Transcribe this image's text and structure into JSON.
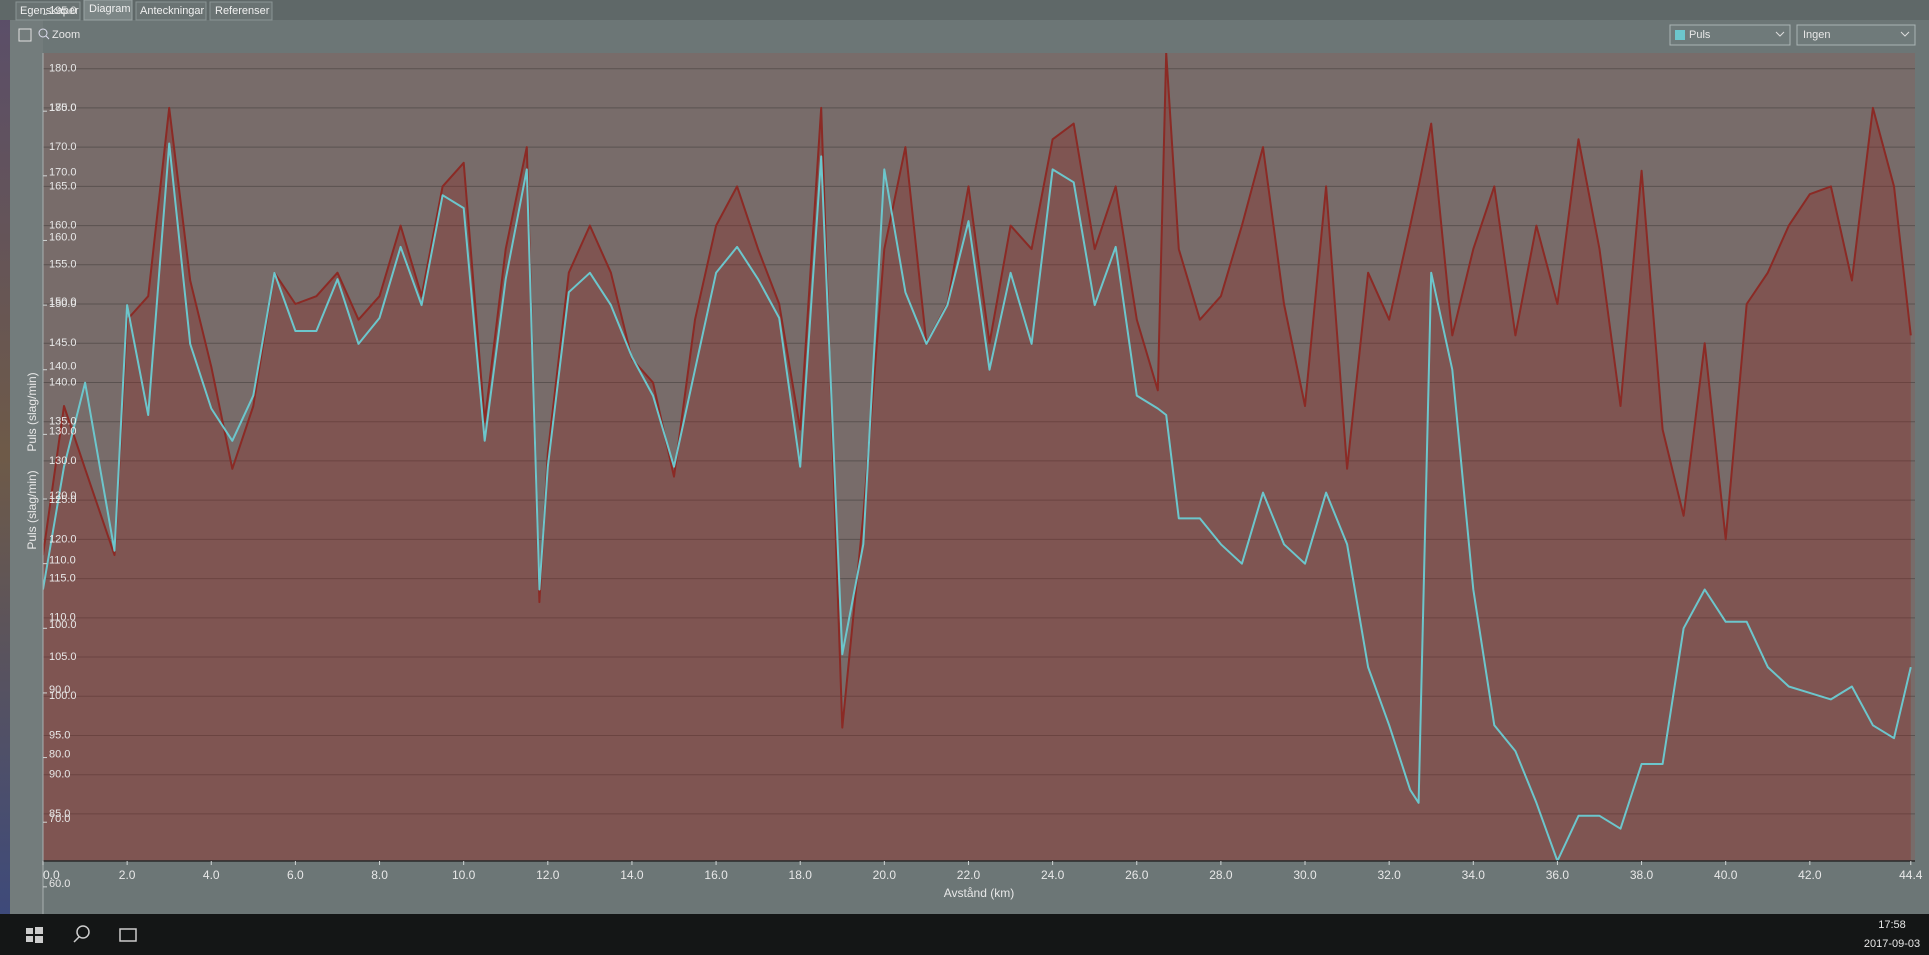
{
  "tabs": [
    "Egenskaper",
    "Diagram",
    "Anteckningar",
    "Referenser"
  ],
  "zoom_label": "Zoom",
  "dropdowns": [
    "Puls",
    "Ingen"
  ],
  "taskbar": {
    "time": "17:58",
    "date": "2017-09-03"
  },
  "chart_data": {
    "type": "line",
    "x_label": "Avstånd  (km)",
    "y_label": "Puls (slag/min)",
    "y2_label": "Puls (slag/min)",
    "x": [
      0,
      0.5,
      1,
      1.7,
      2,
      2.5,
      3,
      3.5,
      4,
      4.5,
      5,
      5.5,
      6,
      6.5,
      7,
      7.5,
      8,
      8.5,
      9,
      9.5,
      10,
      10.5,
      11,
      11.5,
      11.8,
      12,
      12.5,
      13,
      13.5,
      14,
      14.5,
      15,
      15.5,
      16,
      16.5,
      17,
      17.5,
      18,
      18.5,
      19,
      19.5,
      20,
      20.5,
      21,
      21.5,
      22,
      22.5,
      23,
      23.5,
      24,
      24.5,
      25,
      25.5,
      26,
      26.5,
      26.7,
      27,
      27.5,
      28,
      28.5,
      29,
      29.5,
      30,
      30.5,
      31,
      31.5,
      32,
      32.5,
      32.7,
      33,
      33.5,
      34,
      34.5,
      35,
      35.5,
      36,
      36.5,
      37,
      37.5,
      38,
      38.5,
      39,
      39.5,
      40,
      40.5,
      41,
      41.5,
      42,
      42.5,
      43,
      43.5,
      44,
      44.4
    ],
    "series": [
      {
        "color": "#8b2a25",
        "axis": "y",
        "fill": true,
        "values": [
          118,
          137,
          129,
          118,
          148,
          151,
          175,
          153,
          142,
          129,
          137,
          154,
          150,
          151,
          154,
          148,
          151,
          160,
          151,
          165,
          168,
          135,
          157,
          170,
          112,
          131,
          154,
          160,
          154,
          143,
          140,
          128,
          148,
          160,
          165,
          157,
          150,
          134,
          175,
          96,
          123,
          157,
          170,
          145,
          150,
          165,
          145,
          160,
          157,
          171,
          173,
          157,
          165,
          148,
          139,
          182,
          157,
          148,
          151,
          160,
          170,
          150,
          137,
          165,
          129,
          154,
          148,
          160,
          165,
          173,
          146,
          157,
          165,
          146,
          160,
          150,
          171,
          157,
          137,
          167,
          134,
          123,
          145,
          120,
          150,
          154,
          160,
          164,
          165,
          153,
          175,
          165,
          146
        ]
      },
      {
        "color": "#6cc6cc",
        "axis": "y2",
        "fill": false,
        "values": [
          106,
          125,
          138,
          112,
          150,
          133,
          175,
          144,
          134,
          129,
          136,
          155,
          146,
          146,
          154,
          144,
          148,
          159,
          150,
          167,
          165,
          129,
          154,
          171,
          106,
          125,
          152,
          155,
          150,
          142,
          136,
          125,
          140,
          155,
          159,
          154,
          148,
          125,
          173,
          96,
          113,
          171,
          152,
          144,
          150,
          163,
          140,
          155,
          144,
          171,
          169,
          150,
          159,
          136,
          134,
          133,
          117,
          117,
          113,
          110,
          121,
          113,
          110,
          121,
          113,
          94,
          85,
          75,
          73,
          155,
          140,
          106,
          85,
          81,
          73,
          64,
          71,
          71,
          69,
          79,
          79,
          100,
          106,
          101,
          101,
          94,
          91,
          90,
          89,
          91,
          85,
          83,
          94
        ]
      }
    ],
    "xlim": [
      0,
      44.5
    ],
    "xticks": [
      {
        "value": 0,
        "label": "0.0"
      },
      {
        "value": 2,
        "label": "2.0"
      },
      {
        "value": 4,
        "label": "4.0"
      },
      {
        "value": 6,
        "label": "6.0"
      },
      {
        "value": 8,
        "label": "8.0"
      },
      {
        "value": 10,
        "label": "10.0"
      },
      {
        "value": 12,
        "label": "12.0"
      },
      {
        "value": 14,
        "label": "14.0"
      },
      {
        "value": 16,
        "label": "16.0"
      },
      {
        "value": 18,
        "label": "18.0"
      },
      {
        "value": 20,
        "label": "20.0"
      },
      {
        "value": 22,
        "label": "22.0"
      },
      {
        "value": 24,
        "label": "24.0"
      },
      {
        "value": 26,
        "label": "26.0"
      },
      {
        "value": 28,
        "label": "28.0"
      },
      {
        "value": 30,
        "label": "30.0"
      },
      {
        "value": 32,
        "label": "32.0"
      },
      {
        "value": 34,
        "label": "34.0"
      },
      {
        "value": 36,
        "label": "36.0"
      },
      {
        "value": 38,
        "label": "38.0"
      },
      {
        "value": 40,
        "label": "40.0"
      },
      {
        "value": 42,
        "label": "42.0"
      },
      {
        "value": 44.4,
        "label": "44.4"
      }
    ],
    "ylim": [
      79,
      182
    ],
    "yticks": [
      {
        "value": 180,
        "label": "180.0"
      },
      {
        "value": 175,
        "label": "175.0"
      },
      {
        "value": 170,
        "label": "170.0"
      },
      {
        "value": 165,
        "label": "165.0"
      },
      {
        "value": 160,
        "label": "160.0"
      },
      {
        "value": 155,
        "label": "155.0"
      },
      {
        "value": 150,
        "label": "150.0"
      },
      {
        "value": 145,
        "label": "145.0"
      },
      {
        "value": 140,
        "label": "140.0"
      },
      {
        "value": 135,
        "label": "135.0"
      },
      {
        "value": 130,
        "label": "130.0"
      },
      {
        "value": 125,
        "label": "125.0"
      },
      {
        "value": 120,
        "label": "120.0"
      },
      {
        "value": 115,
        "label": "115.0"
      },
      {
        "value": 110,
        "label": "110.0"
      },
      {
        "value": 105,
        "label": "105.0"
      },
      {
        "value": 100,
        "label": "100.0"
      },
      {
        "value": 95,
        "label": "95.0"
      },
      {
        "value": 90,
        "label": "90.0"
      },
      {
        "value": 85,
        "label": "85.0"
      }
    ],
    "y2lim": [
      64,
      189
    ],
    "y2ticks": [
      {
        "value": 195,
        "label": "195.0"
      },
      {
        "value": 180,
        "label": "180.0"
      },
      {
        "value": 170,
        "label": "170.0"
      },
      {
        "value": 160,
        "label": "160.0"
      },
      {
        "value": 150,
        "label": "150.0"
      },
      {
        "value": 140,
        "label": "140.0"
      },
      {
        "value": 130,
        "label": "130.0"
      },
      {
        "value": 120,
        "label": "120.0"
      },
      {
        "value": 110,
        "label": "110.0"
      },
      {
        "value": 100,
        "label": "100.0"
      },
      {
        "value": 90,
        "label": "90.0"
      },
      {
        "value": 80,
        "label": "80.0"
      },
      {
        "value": 70,
        "label": "70.0"
      },
      {
        "value": 60,
        "label": "60.0"
      }
    ],
    "grid": true
  }
}
